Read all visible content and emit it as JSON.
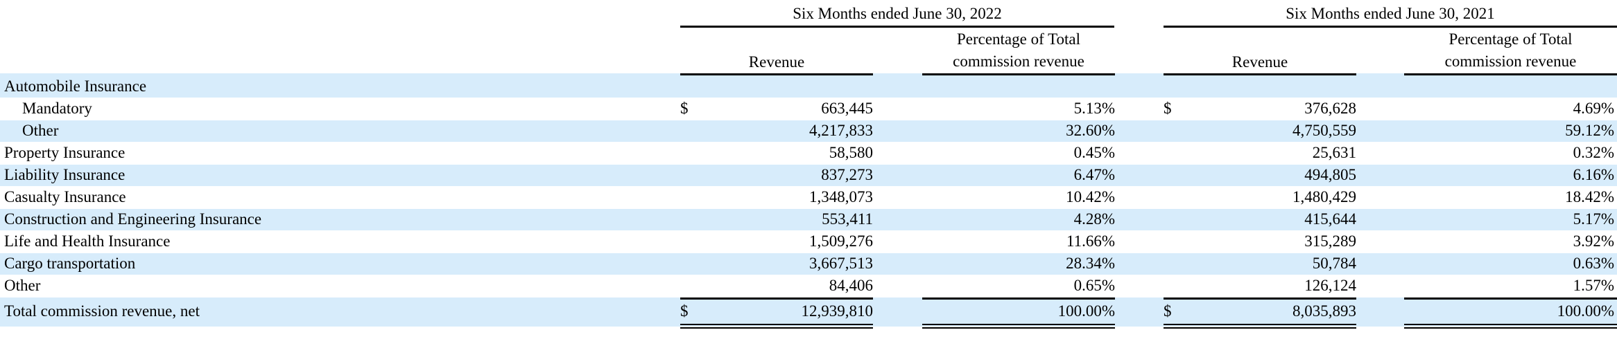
{
  "headers": {
    "period_2022": "Six Months ended June 30, 2022",
    "period_2021": "Six Months ended June 30, 2021",
    "revenue_2022": "Revenue",
    "revenue_2021": "Revenue",
    "pct_2022_line1": "Percentage of Total",
    "pct_2022_line2": "commission revenue",
    "pct_2021_line1": "Percentage of Total",
    "pct_2021_line2": "commission revenue"
  },
  "section": {
    "label": "Automobile Insurance"
  },
  "rows": [
    {
      "label": "Mandatory",
      "cur_2022": "$",
      "rev_2022": "663,445",
      "pct_2022": "5.13%",
      "cur_2021": "$",
      "rev_2021": "376,628",
      "pct_2021": "4.69%"
    },
    {
      "label": "Other",
      "cur_2022": "",
      "rev_2022": "4,217,833",
      "pct_2022": "32.60%",
      "cur_2021": "",
      "rev_2021": "4,750,559",
      "pct_2021": "59.12%"
    },
    {
      "label": "Property Insurance",
      "cur_2022": "",
      "rev_2022": "58,580",
      "pct_2022": "0.45%",
      "cur_2021": "",
      "rev_2021": "25,631",
      "pct_2021": "0.32%"
    },
    {
      "label": "Liability Insurance",
      "cur_2022": "",
      "rev_2022": "837,273",
      "pct_2022": "6.47%",
      "cur_2021": "",
      "rev_2021": "494,805",
      "pct_2021": "6.16%"
    },
    {
      "label": "Casualty Insurance",
      "cur_2022": "",
      "rev_2022": "1,348,073",
      "pct_2022": "10.42%",
      "cur_2021": "",
      "rev_2021": "1,480,429",
      "pct_2021": "18.42%"
    },
    {
      "label": "Construction and Engineering Insurance",
      "cur_2022": "",
      "rev_2022": "553,411",
      "pct_2022": "4.28%",
      "cur_2021": "",
      "rev_2021": "415,644",
      "pct_2021": "5.17%"
    },
    {
      "label": "Life and Health Insurance",
      "cur_2022": "",
      "rev_2022": "1,509,276",
      "pct_2022": "11.66%",
      "cur_2021": "",
      "rev_2021": "315,289",
      "pct_2021": "3.92%"
    },
    {
      "label": "Cargo transportation",
      "cur_2022": "",
      "rev_2022": "3,667,513",
      "pct_2022": "28.34%",
      "cur_2021": "",
      "rev_2021": "50,784",
      "pct_2021": "0.63%"
    },
    {
      "label": "Other",
      "cur_2022": "",
      "rev_2022": "84,406",
      "pct_2022": "0.65%",
      "cur_2021": "",
      "rev_2021": "126,124",
      "pct_2021": "1.57%"
    }
  ],
  "total": {
    "label": "Total commission revenue, net",
    "cur_2022": "$",
    "rev_2022": "12,939,810",
    "pct_2022": "100.00%",
    "cur_2021": "$",
    "rev_2021": "8,035,893",
    "pct_2021": "100.00%"
  },
  "colors": {
    "band": "#d7ecfb",
    "rule": "#000000"
  }
}
